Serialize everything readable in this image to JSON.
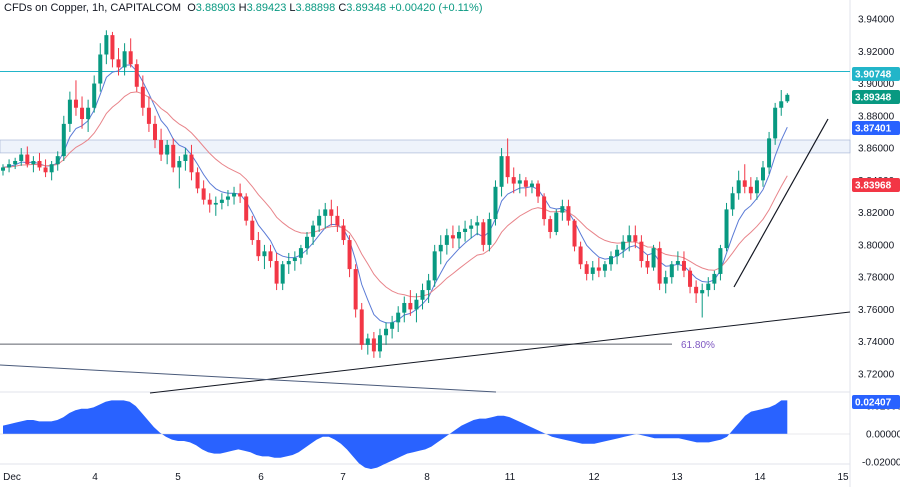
{
  "header": {
    "symbol": "CFDs on Copper, 1h, CAPITALCOM",
    "o_label": "O",
    "o_value": "3.88903",
    "h_label": "H",
    "h_value": "3.89423",
    "l_label": "L",
    "l_value": "3.88898",
    "c_label": "C",
    "c_value": "3.89348",
    "change": "+0.00420 (+0.11%)"
  },
  "chart_data": {
    "type": "candlestick",
    "price_axis": {
      "ylim": [
        3.7,
        3.95
      ],
      "ticks": [
        "3.94000",
        "3.92000",
        "3.90000",
        "3.88000",
        "3.86000",
        "3.84000",
        "3.82000",
        "3.80000",
        "3.78000",
        "3.76000",
        "3.74000",
        "3.72000"
      ]
    },
    "time_axis": {
      "labels": [
        "Dec",
        "4",
        "5",
        "6",
        "7",
        "8",
        "11",
        "12",
        "13",
        "14",
        "15"
      ]
    },
    "oscillator_axis": {
      "ticks": [
        "0.02000",
        "0.00000",
        "-0.02000"
      ]
    },
    "badges": [
      {
        "text": "3.90748",
        "color": "#22b5c9"
      },
      {
        "text": "3.89348",
        "color": "#089981"
      },
      {
        "text": "3.87401",
        "color": "#2962ff"
      },
      {
        "text": "3.83968",
        "color": "#f23645"
      },
      {
        "text": "0.02407",
        "color": "#2962ff"
      }
    ],
    "annotations": [
      {
        "text": "61.80%",
        "color": "#7e57c2"
      }
    ],
    "horizontal_levels": [
      3.90748,
      3.865,
      3.857,
      3.7385
    ],
    "candles": [
      [
        3.846,
        3.85,
        3.843,
        3.848
      ],
      [
        3.848,
        3.853,
        3.845,
        3.85
      ],
      [
        3.85,
        3.854,
        3.847,
        3.852
      ],
      [
        3.852,
        3.86,
        3.849,
        3.856
      ],
      [
        3.856,
        3.861,
        3.848,
        3.85
      ],
      [
        3.85,
        3.855,
        3.845,
        3.852
      ],
      [
        3.852,
        3.857,
        3.846,
        3.848
      ],
      [
        3.848,
        3.853,
        3.842,
        3.845
      ],
      [
        3.845,
        3.852,
        3.84,
        3.85
      ],
      [
        3.85,
        3.858,
        3.846,
        3.855
      ],
      [
        3.855,
        3.88,
        3.852,
        3.875
      ],
      [
        3.875,
        3.895,
        3.87,
        3.89
      ],
      [
        3.89,
        3.902,
        3.88,
        3.885
      ],
      [
        3.885,
        3.892,
        3.872,
        3.878
      ],
      [
        3.878,
        3.89,
        3.87,
        3.885
      ],
      [
        3.885,
        3.905,
        3.882,
        3.9
      ],
      [
        3.9,
        3.925,
        3.895,
        3.918
      ],
      [
        3.918,
        3.933,
        3.912,
        3.93
      ],
      [
        3.93,
        3.932,
        3.91,
        3.915
      ],
      [
        3.915,
        3.922,
        3.905,
        3.91
      ],
      [
        3.91,
        3.925,
        3.905,
        3.92
      ],
      [
        3.92,
        3.928,
        3.91,
        3.912
      ],
      [
        3.912,
        3.915,
        3.895,
        3.898
      ],
      [
        3.898,
        3.905,
        3.88,
        3.885
      ],
      [
        3.885,
        3.892,
        3.87,
        3.875
      ],
      [
        3.875,
        3.88,
        3.86,
        3.865
      ],
      [
        3.865,
        3.872,
        3.852,
        3.856
      ],
      [
        3.856,
        3.865,
        3.85,
        3.862
      ],
      [
        3.862,
        3.866,
        3.845,
        3.848
      ],
      [
        3.848,
        3.855,
        3.835,
        3.852
      ],
      [
        3.852,
        3.86,
        3.846,
        3.856
      ],
      [
        3.856,
        3.862,
        3.84,
        3.845
      ],
      [
        3.845,
        3.848,
        3.832,
        3.835
      ],
      [
        3.835,
        3.84,
        3.825,
        3.828
      ],
      [
        3.828,
        3.832,
        3.82,
        3.825
      ],
      [
        3.825,
        3.83,
        3.818,
        3.826
      ],
      [
        3.826,
        3.832,
        3.822,
        3.828
      ],
      [
        3.828,
        3.834,
        3.824,
        3.83
      ],
      [
        3.83,
        3.836,
        3.825,
        3.832
      ],
      [
        3.832,
        3.838,
        3.826,
        3.83
      ],
      [
        3.83,
        3.832,
        3.812,
        3.815
      ],
      [
        3.815,
        3.818,
        3.8,
        3.803
      ],
      [
        3.803,
        3.808,
        3.79,
        3.793
      ],
      [
        3.793,
        3.8,
        3.785,
        3.796
      ],
      [
        3.796,
        3.8,
        3.786,
        3.79
      ],
      [
        3.79,
        3.795,
        3.772,
        3.776
      ],
      [
        3.776,
        3.79,
        3.772,
        3.788
      ],
      [
        3.788,
        3.795,
        3.782,
        3.79
      ],
      [
        3.79,
        3.796,
        3.784,
        3.792
      ],
      [
        3.792,
        3.8,
        3.788,
        3.798
      ],
      [
        3.798,
        3.808,
        3.794,
        3.805
      ],
      [
        3.805,
        3.815,
        3.8,
        3.812
      ],
      [
        3.812,
        3.822,
        3.808,
        3.818
      ],
      [
        3.818,
        3.826,
        3.81,
        3.822
      ],
      [
        3.822,
        3.828,
        3.812,
        3.818
      ],
      [
        3.818,
        3.824,
        3.808,
        3.812
      ],
      [
        3.812,
        3.816,
        3.8,
        3.803
      ],
      [
        3.803,
        3.806,
        3.78,
        3.785
      ],
      [
        3.785,
        3.788,
        3.755,
        3.76
      ],
      [
        3.76,
        3.764,
        3.735,
        3.738
      ],
      [
        3.738,
        3.745,
        3.732,
        3.742
      ],
      [
        3.742,
        3.746,
        3.73,
        3.734
      ],
      [
        3.734,
        3.748,
        3.73,
        3.744
      ],
      [
        3.744,
        3.752,
        3.738,
        3.748
      ],
      [
        3.748,
        3.756,
        3.742,
        3.752
      ],
      [
        3.752,
        3.762,
        3.746,
        3.758
      ],
      [
        3.758,
        3.768,
        3.752,
        3.764
      ],
      [
        3.764,
        3.772,
        3.756,
        3.76
      ],
      [
        3.76,
        3.77,
        3.752,
        3.766
      ],
      [
        3.766,
        3.776,
        3.76,
        3.772
      ],
      [
        3.772,
        3.782,
        3.764,
        3.778
      ],
      [
        3.778,
        3.8,
        3.774,
        3.796
      ],
      [
        3.796,
        3.806,
        3.788,
        3.8
      ],
      [
        3.8,
        3.81,
        3.794,
        3.806
      ],
      [
        3.806,
        3.812,
        3.798,
        3.804
      ],
      [
        3.804,
        3.812,
        3.798,
        3.808
      ],
      [
        3.808,
        3.815,
        3.802,
        3.81
      ],
      [
        3.81,
        3.816,
        3.804,
        3.812
      ],
      [
        3.812,
        3.818,
        3.806,
        3.814
      ],
      [
        3.814,
        3.816,
        3.796,
        3.8
      ],
      [
        3.8,
        3.82,
        3.796,
        3.816
      ],
      [
        3.816,
        3.84,
        3.812,
        3.836
      ],
      [
        3.836,
        3.86,
        3.83,
        3.855
      ],
      [
        3.855,
        3.866,
        3.838,
        3.842
      ],
      [
        3.842,
        3.848,
        3.832,
        3.838
      ],
      [
        3.838,
        3.844,
        3.832,
        3.84
      ],
      [
        3.84,
        3.842,
        3.83,
        3.836
      ],
      [
        3.836,
        3.84,
        3.832,
        3.838
      ],
      [
        3.838,
        3.84,
        3.826,
        3.83
      ],
      [
        3.83,
        3.832,
        3.812,
        3.816
      ],
      [
        3.816,
        3.818,
        3.804,
        3.808
      ],
      [
        3.808,
        3.822,
        3.806,
        3.82
      ],
      [
        3.82,
        3.828,
        3.815,
        3.824
      ],
      [
        3.824,
        3.828,
        3.812,
        3.815
      ],
      [
        3.815,
        3.816,
        3.796,
        3.799
      ],
      [
        3.799,
        3.802,
        3.785,
        3.788
      ],
      [
        3.788,
        3.79,
        3.778,
        3.782
      ],
      [
        3.782,
        3.79,
        3.778,
        3.786
      ],
      [
        3.786,
        3.792,
        3.78,
        3.784
      ],
      [
        3.784,
        3.79,
        3.78,
        3.788
      ],
      [
        3.788,
        3.796,
        3.784,
        3.793
      ],
      [
        3.793,
        3.8,
        3.788,
        3.797
      ],
      [
        3.797,
        3.806,
        3.792,
        3.802
      ],
      [
        3.802,
        3.812,
        3.796,
        3.806
      ],
      [
        3.806,
        3.812,
        3.798,
        3.802
      ],
      [
        3.802,
        3.806,
        3.786,
        3.79
      ],
      [
        3.79,
        3.794,
        3.782,
        3.786
      ],
      [
        3.786,
        3.8,
        3.784,
        3.798
      ],
      [
        3.798,
        3.802,
        3.772,
        3.776
      ],
      [
        3.776,
        3.784,
        3.77,
        3.78
      ],
      [
        3.78,
        3.79,
        3.776,
        3.788
      ],
      [
        3.788,
        3.796,
        3.784,
        3.79
      ],
      [
        3.79,
        3.796,
        3.78,
        3.784
      ],
      [
        3.784,
        3.786,
        3.77,
        3.774
      ],
      [
        3.774,
        3.778,
        3.764,
        3.77
      ],
      [
        3.77,
        3.776,
        3.755,
        3.772
      ],
      [
        3.772,
        3.78,
        3.768,
        3.776
      ],
      [
        3.776,
        3.784,
        3.772,
        3.782
      ],
      [
        3.782,
        3.8,
        3.778,
        3.798
      ],
      [
        3.798,
        3.826,
        3.796,
        3.822
      ],
      [
        3.822,
        3.836,
        3.818,
        3.832
      ],
      [
        3.832,
        3.846,
        3.828,
        3.84
      ],
      [
        3.84,
        3.85,
        3.832,
        3.836
      ],
      [
        3.836,
        3.842,
        3.828,
        3.832
      ],
      [
        3.832,
        3.842,
        3.828,
        3.84
      ],
      [
        3.84,
        3.852,
        3.836,
        3.848
      ],
      [
        3.848,
        3.87,
        3.844,
        3.866
      ],
      [
        3.866,
        3.888,
        3.862,
        3.885
      ],
      [
        3.885,
        3.896,
        3.88,
        3.889
      ],
      [
        3.889,
        3.894,
        3.888,
        3.893
      ]
    ],
    "ema_fast_color": "#5b7bd6",
    "ema_slow_color": "#e8848a",
    "oscillator_color": "#2962ff",
    "oscillator": [
      0.006,
      0.007,
      0.008,
      0.009,
      0.01,
      0.01,
      0.009,
      0.009,
      0.009,
      0.01,
      0.012,
      0.015,
      0.017,
      0.018,
      0.018,
      0.019,
      0.021,
      0.023,
      0.024,
      0.024,
      0.024,
      0.023,
      0.02,
      0.015,
      0.01,
      0.005,
      0.001,
      -0.002,
      -0.004,
      -0.005,
      -0.005,
      -0.006,
      -0.008,
      -0.011,
      -0.013,
      -0.014,
      -0.014,
      -0.013,
      -0.012,
      -0.011,
      -0.012,
      -0.013,
      -0.015,
      -0.016,
      -0.016,
      -0.017,
      -0.017,
      -0.016,
      -0.015,
      -0.013,
      -0.01,
      -0.007,
      -0.004,
      -0.002,
      -0.002,
      -0.004,
      -0.007,
      -0.011,
      -0.016,
      -0.021,
      -0.024,
      -0.025,
      -0.024,
      -0.022,
      -0.02,
      -0.018,
      -0.016,
      -0.014,
      -0.013,
      -0.012,
      -0.011,
      -0.009,
      -0.006,
      -0.003,
      0.0,
      0.003,
      0.006,
      0.008,
      0.01,
      0.011,
      0.011,
      0.012,
      0.013,
      0.013,
      0.012,
      0.01,
      0.008,
      0.006,
      0.004,
      0.002,
      0.0,
      -0.002,
      -0.003,
      -0.004,
      -0.005,
      -0.006,
      -0.007,
      -0.007,
      -0.007,
      -0.006,
      -0.005,
      -0.004,
      -0.003,
      -0.002,
      -0.001,
      0.0,
      -0.001,
      -0.002,
      -0.003,
      -0.003,
      -0.003,
      -0.003,
      -0.003,
      -0.004,
      -0.005,
      -0.006,
      -0.006,
      -0.006,
      -0.005,
      -0.004,
      -0.002,
      0.003,
      0.008,
      0.013,
      0.016,
      0.017,
      0.018,
      0.019,
      0.021,
      0.024,
      0.024
    ]
  }
}
